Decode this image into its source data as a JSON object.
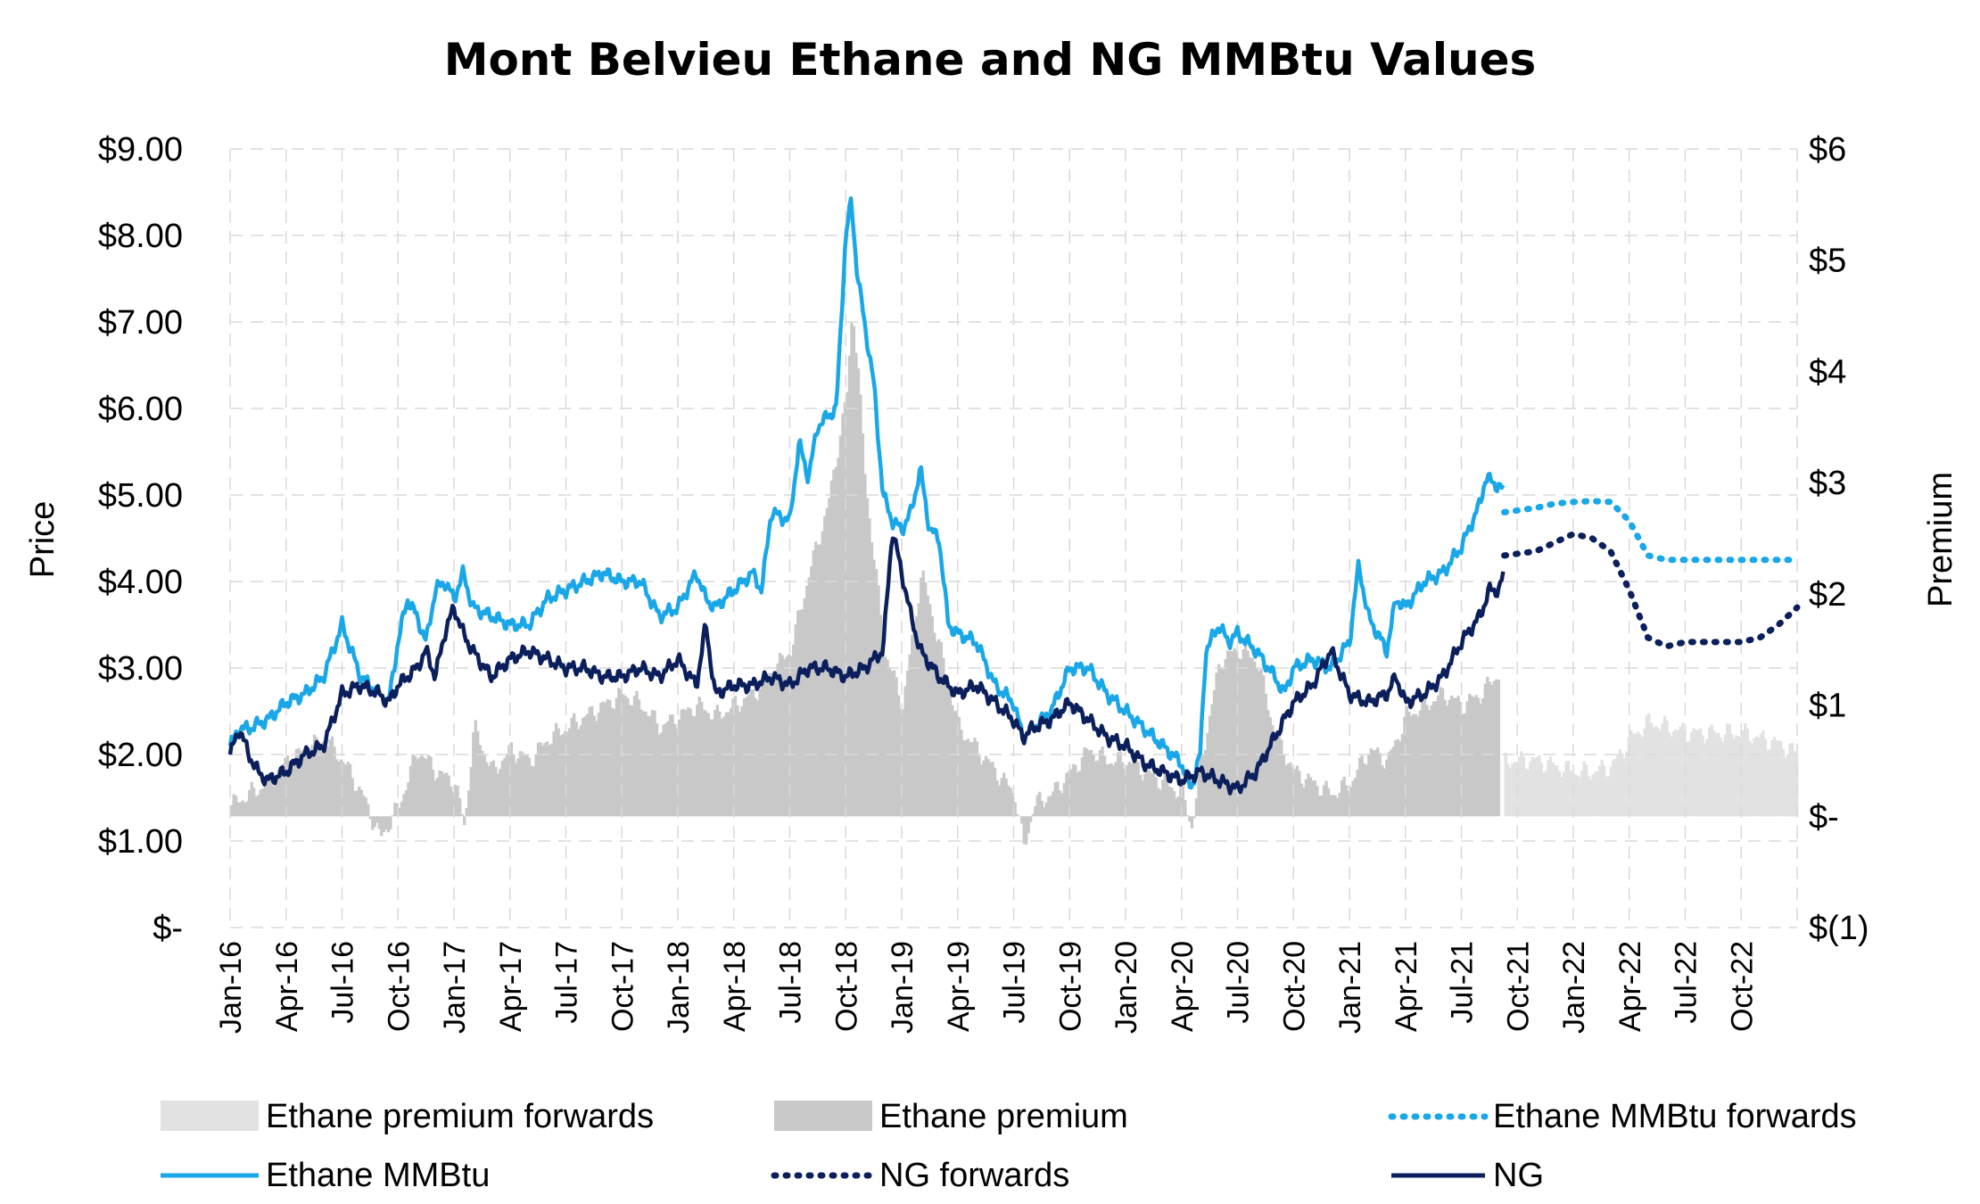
{
  "chart_data": {
    "type": "line",
    "title": "Mont Belvieu Ethane and NG MMBtu Values",
    "ylabel": "Price",
    "y2label": "Premium",
    "ylim": [
      0,
      9
    ],
    "y2lim": [
      -1,
      6
    ],
    "yticks": [
      "$9.00",
      "$8.00",
      "$7.00",
      "$6.00",
      "$5.00",
      "$4.00",
      "$3.00",
      "$2.00",
      "$1.00",
      "$-"
    ],
    "y2ticks": [
      "$6",
      "$5",
      "$4",
      "$3",
      "$2",
      "$1",
      "$-",
      "$(1)"
    ],
    "xticks": [
      "Jan-16",
      "Apr-16",
      "Jul-16",
      "Oct-16",
      "Jan-17",
      "Apr-17",
      "Jul-17",
      "Oct-17",
      "Jan-18",
      "Apr-18",
      "Jul-18",
      "Oct-18",
      "Jan-19",
      "Apr-19",
      "Jul-19",
      "Oct-19",
      "Jan-20",
      "Apr-20",
      "Jul-20",
      "Oct-20",
      "Jan-21",
      "Apr-21",
      "Jul-21",
      "Oct-21",
      "Jan-22",
      "Apr-22",
      "Jul-22",
      "Oct-22"
    ],
    "grid": true,
    "legend_position": "bottom",
    "colors": {
      "ethane": "#1aa7e8",
      "ng": "#0b1f5c",
      "premium": "#c8c8c8",
      "premium_forwards": "#e2e2e2"
    },
    "series": [
      {
        "name": "Ethane MMBtu",
        "axis": "left",
        "style": "solid",
        "points": [
          [
            0,
            2.1
          ],
          [
            0.5,
            2.3
          ],
          [
            1,
            2.3
          ],
          [
            2,
            2.4
          ],
          [
            3,
            2.6
          ],
          [
            4,
            2.7
          ],
          [
            5,
            2.9
          ],
          [
            6,
            3.5
          ],
          [
            6.5,
            3.2
          ],
          [
            7,
            2.9
          ],
          [
            8,
            2.7
          ],
          [
            8.5,
            2.6
          ],
          [
            9,
            3.3
          ],
          [
            9.5,
            3.8
          ],
          [
            10,
            3.6
          ],
          [
            10.5,
            3.3
          ],
          [
            11,
            3.9
          ],
          [
            11.5,
            4.0
          ],
          [
            12,
            3.8
          ],
          [
            12.5,
            4.1
          ],
          [
            13,
            3.7
          ],
          [
            14,
            3.6
          ],
          [
            15,
            3.5
          ],
          [
            16,
            3.5
          ],
          [
            17,
            3.8
          ],
          [
            18,
            3.9
          ],
          [
            19,
            4.0
          ],
          [
            20,
            4.1
          ],
          [
            21,
            4.0
          ],
          [
            22,
            4.0
          ],
          [
            23,
            3.6
          ],
          [
            24,
            3.7
          ],
          [
            25,
            4.1
          ],
          [
            25.5,
            3.8
          ],
          [
            26,
            3.7
          ],
          [
            27,
            3.9
          ],
          [
            28,
            4.1
          ],
          [
            28.5,
            3.9
          ],
          [
            29,
            4.8
          ],
          [
            30,
            4.7
          ],
          [
            30.5,
            5.6
          ],
          [
            31,
            5.2
          ],
          [
            31.5,
            5.8
          ],
          [
            32,
            5.9
          ],
          [
            32.5,
            6.0
          ],
          [
            33,
            8.0
          ],
          [
            33.3,
            8.4
          ],
          [
            33.6,
            7.6
          ],
          [
            34,
            7.0
          ],
          [
            34.5,
            6.3
          ],
          [
            35,
            5.0
          ],
          [
            35.5,
            4.7
          ],
          [
            36,
            4.6
          ],
          [
            36.5,
            4.8
          ],
          [
            37,
            5.3
          ],
          [
            37.5,
            4.6
          ],
          [
            38,
            4.5
          ],
          [
            38.5,
            3.5
          ],
          [
            39,
            3.4
          ],
          [
            40,
            3.3
          ],
          [
            41,
            2.8
          ],
          [
            42,
            2.6
          ],
          [
            42.5,
            2.2
          ],
          [
            43,
            2.3
          ],
          [
            44,
            2.5
          ],
          [
            45,
            3.0
          ],
          [
            46,
            3.0
          ],
          [
            47,
            2.7
          ],
          [
            48,
            2.5
          ],
          [
            49,
            2.3
          ],
          [
            50,
            2.1
          ],
          [
            51,
            1.9
          ],
          [
            51.5,
            1.6
          ],
          [
            52,
            2.0
          ],
          [
            52.3,
            3.2
          ],
          [
            53,
            3.5
          ],
          [
            53.5,
            3.3
          ],
          [
            54,
            3.4
          ],
          [
            55,
            3.2
          ],
          [
            56,
            2.9
          ],
          [
            56.5,
            2.7
          ],
          [
            57,
            3.0
          ],
          [
            58,
            3.1
          ],
          [
            59,
            3.0
          ],
          [
            60,
            3.3
          ],
          [
            60.5,
            4.2
          ],
          [
            61,
            3.6
          ],
          [
            62,
            3.2
          ],
          [
            62.5,
            3.8
          ],
          [
            63,
            3.7
          ],
          [
            64,
            4.0
          ],
          [
            65,
            4.1
          ],
          [
            66,
            4.4
          ],
          [
            67,
            4.9
          ],
          [
            67.3,
            5.2
          ],
          [
            68,
            5.1
          ],
          [
            68.3,
            5.05
          ]
        ]
      },
      {
        "name": "NG",
        "axis": "left",
        "style": "solid",
        "points": [
          [
            0,
            2.0
          ],
          [
            0.5,
            2.3
          ],
          [
            1,
            2.0
          ],
          [
            1.5,
            1.8
          ],
          [
            2,
            1.7
          ],
          [
            3,
            1.8
          ],
          [
            4,
            2.0
          ],
          [
            5,
            2.1
          ],
          [
            6,
            2.7
          ],
          [
            7,
            2.8
          ],
          [
            8,
            2.7
          ],
          [
            8.5,
            2.6
          ],
          [
            9,
            2.8
          ],
          [
            10,
            3.0
          ],
          [
            10.5,
            3.2
          ],
          [
            11,
            2.9
          ],
          [
            11.5,
            3.4
          ],
          [
            12,
            3.7
          ],
          [
            12.5,
            3.4
          ],
          [
            13,
            3.2
          ],
          [
            14,
            2.9
          ],
          [
            15,
            3.1
          ],
          [
            16,
            3.2
          ],
          [
            17,
            3.1
          ],
          [
            18,
            3.0
          ],
          [
            19,
            3.0
          ],
          [
            20,
            2.9
          ],
          [
            21,
            2.9
          ],
          [
            22,
            3.0
          ],
          [
            23,
            2.9
          ],
          [
            24,
            3.1
          ],
          [
            25,
            2.8
          ],
          [
            25.5,
            3.5
          ],
          [
            26,
            2.7
          ],
          [
            27,
            2.8
          ],
          [
            28,
            2.8
          ],
          [
            29,
            2.9
          ],
          [
            30,
            2.8
          ],
          [
            31,
            3.0
          ],
          [
            32,
            3.0
          ],
          [
            33,
            2.9
          ],
          [
            34,
            3.0
          ],
          [
            35,
            3.2
          ],
          [
            35.5,
            4.6
          ],
          [
            36,
            4.1
          ],
          [
            36.5,
            3.6
          ],
          [
            37,
            3.2
          ],
          [
            38,
            2.9
          ],
          [
            39,
            2.7
          ],
          [
            40,
            2.8
          ],
          [
            41,
            2.6
          ],
          [
            42,
            2.4
          ],
          [
            42.5,
            2.2
          ],
          [
            43,
            2.3
          ],
          [
            44,
            2.4
          ],
          [
            45,
            2.6
          ],
          [
            46,
            2.4
          ],
          [
            47,
            2.2
          ],
          [
            48,
            2.1
          ],
          [
            49,
            1.9
          ],
          [
            50,
            1.8
          ],
          [
            51,
            1.7
          ],
          [
            52,
            1.8
          ],
          [
            53,
            1.7
          ],
          [
            54,
            1.6
          ],
          [
            55,
            1.8
          ],
          [
            56,
            2.2
          ],
          [
            57,
            2.6
          ],
          [
            58,
            2.8
          ],
          [
            59,
            3.2
          ],
          [
            60,
            2.7
          ],
          [
            61,
            2.6
          ],
          [
            62,
            2.7
          ],
          [
            62.5,
            2.9
          ],
          [
            63,
            2.6
          ],
          [
            64,
            2.7
          ],
          [
            65,
            2.9
          ],
          [
            66,
            3.3
          ],
          [
            67,
            3.6
          ],
          [
            67.5,
            3.9
          ],
          [
            68,
            3.9
          ],
          [
            68.3,
            4.1
          ]
        ]
      },
      {
        "name": "Ethane MMBtu forwards",
        "axis": "left",
        "style": "dotted",
        "points": [
          [
            68.3,
            4.8
          ],
          [
            70,
            4.85
          ],
          [
            71,
            4.9
          ],
          [
            72,
            4.92
          ],
          [
            73,
            4.93
          ],
          [
            74,
            4.92
          ],
          [
            75,
            4.7
          ],
          [
            76,
            4.3
          ],
          [
            77,
            4.25
          ],
          [
            78,
            4.25
          ],
          [
            79,
            4.25
          ],
          [
            80,
            4.25
          ],
          [
            81,
            4.25
          ],
          [
            82,
            4.25
          ],
          [
            83,
            4.25
          ],
          [
            84,
            4.25
          ]
        ]
      },
      {
        "name": "NG forwards",
        "axis": "left",
        "style": "dotted",
        "points": [
          [
            68.3,
            4.3
          ],
          [
            70,
            4.35
          ],
          [
            71,
            4.45
          ],
          [
            72,
            4.55
          ],
          [
            73,
            4.5
          ],
          [
            74,
            4.35
          ],
          [
            75,
            3.9
          ],
          [
            76,
            3.35
          ],
          [
            77,
            3.25
          ],
          [
            78,
            3.3
          ],
          [
            79,
            3.3
          ],
          [
            80,
            3.3
          ],
          [
            81,
            3.3
          ],
          [
            82,
            3.35
          ],
          [
            83,
            3.5
          ],
          [
            84,
            3.7
          ]
        ]
      },
      {
        "name": "Ethane premium",
        "axis": "right",
        "style": "bar",
        "points": [
          [
            0,
            0.1
          ],
          [
            1,
            0.2
          ],
          [
            2,
            0.3
          ],
          [
            3,
            0.5
          ],
          [
            4,
            0.6
          ],
          [
            5,
            0.7
          ],
          [
            6,
            0.5
          ],
          [
            7,
            0.2
          ],
          [
            8,
            -0.2
          ],
          [
            9,
            0.1
          ],
          [
            10,
            0.6
          ],
          [
            11,
            0.4
          ],
          [
            12,
            0.3
          ],
          [
            12.5,
            -0.1
          ],
          [
            13,
            0.8
          ],
          [
            14,
            0.4
          ],
          [
            15,
            0.6
          ],
          [
            16,
            0.5
          ],
          [
            17,
            0.7
          ],
          [
            18,
            0.8
          ],
          [
            19,
            0.9
          ],
          [
            20,
            1.0
          ],
          [
            21,
            1.1
          ],
          [
            22,
            1.0
          ],
          [
            23,
            0.8
          ],
          [
            24,
            0.9
          ],
          [
            25,
            1.0
          ],
          [
            26,
            0.9
          ],
          [
            27,
            1.0
          ],
          [
            28,
            1.1
          ],
          [
            29,
            1.3
          ],
          [
            30,
            1.5
          ],
          [
            31,
            2.2
          ],
          [
            32,
            2.8
          ],
          [
            33,
            3.8
          ],
          [
            33.3,
            4.6
          ],
          [
            33.6,
            4.0
          ],
          [
            34,
            3.0
          ],
          [
            35,
            1.5
          ],
          [
            36,
            1.0
          ],
          [
            37,
            2.2
          ],
          [
            38,
            1.5
          ],
          [
            39,
            0.8
          ],
          [
            40,
            0.6
          ],
          [
            41,
            0.4
          ],
          [
            42,
            0.2
          ],
          [
            42.5,
            -0.3
          ],
          [
            43,
            0.1
          ],
          [
            44,
            0.2
          ],
          [
            45,
            0.4
          ],
          [
            46,
            0.6
          ],
          [
            47,
            0.5
          ],
          [
            48,
            0.5
          ],
          [
            49,
            0.4
          ],
          [
            50,
            0.3
          ],
          [
            51,
            0.2
          ],
          [
            51.5,
            -0.1
          ],
          [
            52,
            0.5
          ],
          [
            53,
            1.4
          ],
          [
            54,
            1.5
          ],
          [
            55,
            1.4
          ],
          [
            56,
            0.7
          ],
          [
            57,
            0.4
          ],
          [
            58,
            0.3
          ],
          [
            59,
            0.2
          ],
          [
            60,
            0.3
          ],
          [
            61,
            0.6
          ],
          [
            62,
            0.5
          ],
          [
            63,
            0.9
          ],
          [
            64,
            1.0
          ],
          [
            65,
            1.1
          ],
          [
            66,
            1.0
          ],
          [
            67,
            1.1
          ],
          [
            68,
            1.3
          ]
        ]
      },
      {
        "name": "Ethane premium forwards",
        "axis": "right",
        "style": "bar",
        "points": [
          [
            68.3,
            0.5
          ],
          [
            69,
            0.5
          ],
          [
            70,
            0.5
          ],
          [
            71,
            0.45
          ],
          [
            72,
            0.4
          ],
          [
            73,
            0.4
          ],
          [
            74,
            0.45
          ],
          [
            75,
            0.7
          ],
          [
            76,
            0.85
          ],
          [
            77,
            0.8
          ],
          [
            78,
            0.75
          ],
          [
            79,
            0.75
          ],
          [
            80,
            0.75
          ],
          [
            81,
            0.75
          ],
          [
            82,
            0.7
          ],
          [
            83,
            0.65
          ],
          [
            84,
            0.55
          ]
        ]
      }
    ]
  }
}
